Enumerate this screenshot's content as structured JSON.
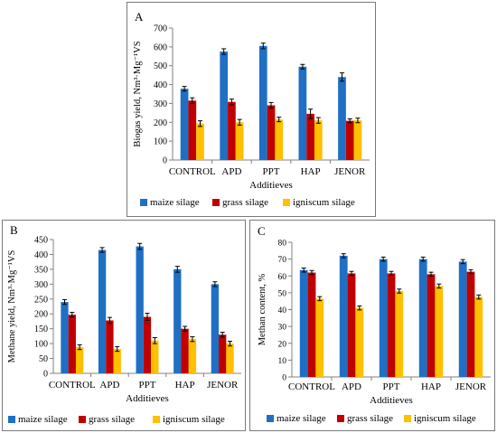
{
  "colors": {
    "maize": "#1f6fc5",
    "grass": "#c00000",
    "igniscum": "#ffc000"
  },
  "chart_data": [
    {
      "type": "bar",
      "panel_label": "A",
      "categories": [
        "CONTROL",
        "APD",
        "PPT",
        "HAP",
        "JENOR"
      ],
      "series": [
        {
          "name": "maize silage",
          "values": [
            378,
            575,
            605,
            495,
            440
          ],
          "errors": [
            12,
            15,
            15,
            12,
            22
          ]
        },
        {
          "name": "grass silage",
          "values": [
            315,
            308,
            290,
            245,
            208
          ],
          "errors": [
            15,
            15,
            15,
            25,
            10
          ]
        },
        {
          "name": "igniscum silage",
          "values": [
            193,
            200,
            215,
            210,
            210
          ],
          "errors": [
            15,
            15,
            12,
            15,
            12
          ]
        }
      ],
      "ylim": [
        0,
        700
      ],
      "yticks": [
        "0",
        "100",
        "200",
        "300",
        "400",
        "500",
        "600",
        "700"
      ],
      "xlabel": "Additieves",
      "ylabel": "Biogas yield, Nm³·Mg⁻¹VS"
    },
    {
      "type": "bar",
      "panel_label": "B",
      "categories": [
        "CONTROL",
        "APD",
        "PPT",
        "HAP",
        "JENOR"
      ],
      "series": [
        {
          "name": "maize silage",
          "values": [
            240,
            415,
            427,
            350,
            300
          ],
          "errors": [
            8,
            8,
            10,
            10,
            8
          ]
        },
        {
          "name": "grass silage",
          "values": [
            197,
            178,
            190,
            150,
            130
          ],
          "errors": [
            8,
            10,
            12,
            8,
            8
          ]
        },
        {
          "name": "igniscum silage",
          "values": [
            88,
            82,
            110,
            115,
            100
          ],
          "errors": [
            8,
            8,
            10,
            8,
            8
          ]
        }
      ],
      "ylim": [
        0,
        450
      ],
      "yticks": [
        "0",
        "50",
        "100",
        "150",
        "200",
        "250",
        "300",
        "350",
        "400",
        "450"
      ],
      "xlabel": "Additieves",
      "ylabel": "Methane yield, Nm³·Mg⁻¹VS"
    },
    {
      "type": "bar",
      "panel_label": "C",
      "categories": [
        "CONTROL",
        "APD",
        "PPT",
        "HAP",
        "JENOR"
      ],
      "series": [
        {
          "name": "maize silage",
          "values": [
            63.5,
            72,
            70,
            70,
            68.5
          ],
          "errors": [
            1.2,
            1.2,
            1.2,
            1.2,
            1.2
          ]
        },
        {
          "name": "grass silage",
          "values": [
            62,
            61.5,
            61.5,
            61,
            62.5
          ],
          "errors": [
            1.2,
            1.2,
            1.2,
            1.2,
            1.2
          ]
        },
        {
          "name": "igniscum silage",
          "values": [
            46.5,
            41,
            51,
            54,
            47.5
          ],
          "errors": [
            1.2,
            1.2,
            1.2,
            1.2,
            1.2
          ]
        }
      ],
      "ylim": [
        0,
        80
      ],
      "yticks": [
        "0",
        "10",
        "20",
        "30",
        "40",
        "50",
        "60",
        "70",
        "80"
      ],
      "xlabel": "Additieves",
      "ylabel": "Methan content, %"
    }
  ]
}
